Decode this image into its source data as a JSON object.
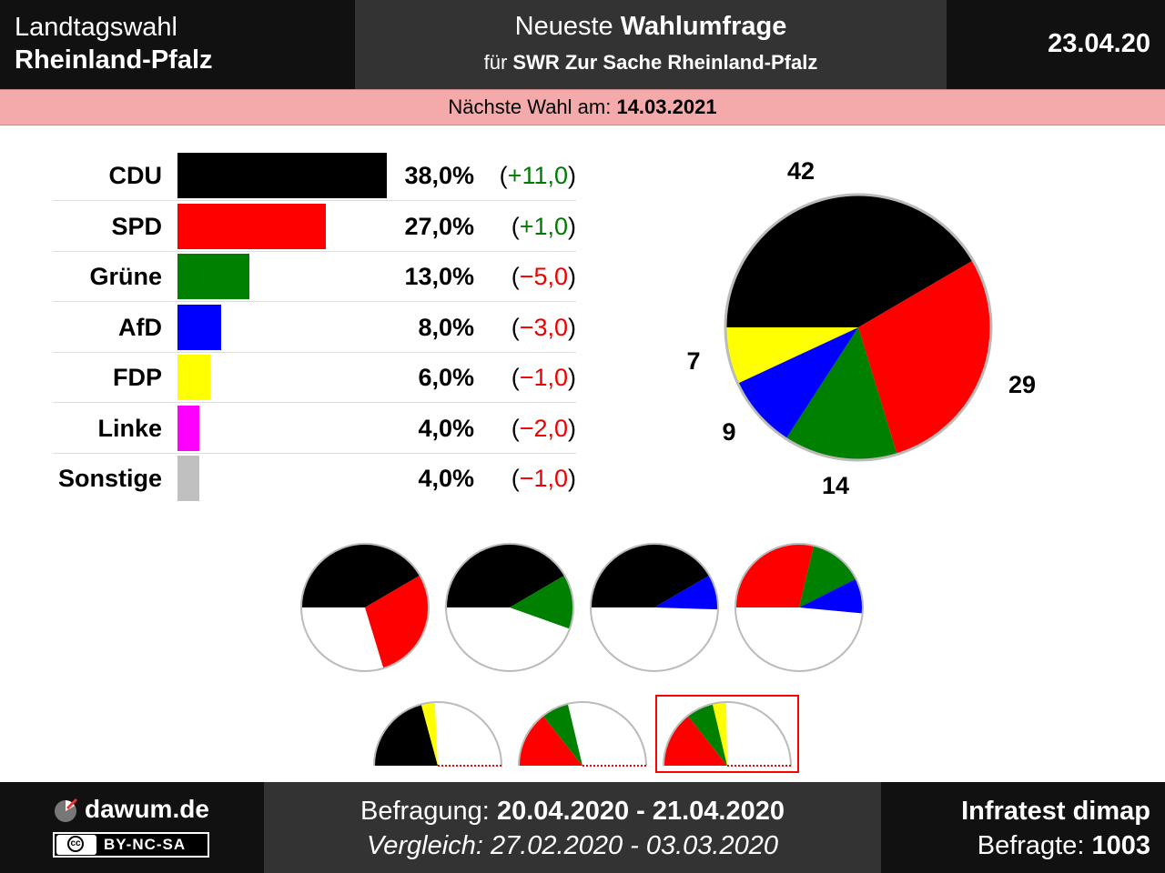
{
  "header": {
    "title_line1": "Landtagswahl",
    "title_line2": "Rheinland-Pfalz",
    "center_line1_prefix": "Neueste ",
    "center_line1_bold": "Wahlumfrage",
    "center_line2_prefix": "für ",
    "center_line2_bold": "SWR Zur Sache Rheinland-Pfalz",
    "date": "23.04.20"
  },
  "next_election": {
    "label": "Nächste Wahl am: ",
    "date": "14.03.2021"
  },
  "chart_data": {
    "type": "bar",
    "categories": [
      "CDU",
      "SPD",
      "Grüne",
      "AfD",
      "FDP",
      "Linke",
      "Sonstige"
    ],
    "values": [
      38.0,
      27.0,
      13.0,
      8.0,
      6.0,
      4.0,
      4.0
    ],
    "value_labels": [
      "38,0%",
      "27,0%",
      "13,0%",
      "8,0%",
      "6,0%",
      "4,0%",
      "4,0%"
    ],
    "changes": [
      11.0,
      1.0,
      -5.0,
      -3.0,
      -1.0,
      -2.0,
      -1.0
    ],
    "change_labels": [
      "(+11,0)",
      "(+1,0)",
      "(−5,0)",
      "(−3,0)",
      "(−1,0)",
      "(−2,0)",
      "(−1,0)"
    ],
    "colors": [
      "#000000",
      "#ff0000",
      "#008000",
      "#0000ff",
      "#ffff00",
      "#ff00ff",
      "#c0c0c0"
    ],
    "seats": {
      "type": "pie",
      "parties": [
        "CDU",
        "SPD",
        "Grüne",
        "AfD",
        "FDP"
      ],
      "values": [
        42,
        29,
        14,
        9,
        7
      ],
      "labels": [
        "42",
        "29",
        "14",
        "9",
        "7"
      ],
      "colors": [
        "#000000",
        "#ff0000",
        "#008000",
        "#0000ff",
        "#ffff00"
      ]
    },
    "coalitions": [
      {
        "parties": [
          "CDU",
          "SPD"
        ],
        "values": [
          42,
          29
        ],
        "colors": [
          "#000000",
          "#ff0000"
        ]
      },
      {
        "parties": [
          "CDU",
          "Grüne"
        ],
        "values": [
          42,
          14
        ],
        "colors": [
          "#000000",
          "#008000"
        ]
      },
      {
        "parties": [
          "CDU",
          "AfD"
        ],
        "values": [
          42,
          9
        ],
        "colors": [
          "#000000",
          "#0000ff"
        ]
      },
      {
        "parties": [
          "SPD",
          "Grüne",
          "AfD"
        ],
        "values": [
          29,
          14,
          9
        ],
        "colors": [
          "#ff0000",
          "#008000",
          "#0000ff"
        ]
      },
      {
        "parties": [
          "CDU",
          "FDP"
        ],
        "values": [
          42,
          7
        ],
        "colors": [
          "#000000",
          "#ffff00"
        ]
      },
      {
        "parties": [
          "SPD",
          "Grüne"
        ],
        "values": [
          29,
          14
        ],
        "colors": [
          "#ff0000",
          "#008000"
        ]
      },
      {
        "parties": [
          "SPD",
          "Grüne",
          "FDP"
        ],
        "values": [
          29,
          14,
          7
        ],
        "colors": [
          "#ff0000",
          "#008000",
          "#ffff00"
        ],
        "highlighted": true
      }
    ],
    "total_seats": 101
  },
  "footer": {
    "site": "dawum.de",
    "license": "BY-NC-SA",
    "cc_icon": "cc-icon",
    "survey_label": "Befragung: ",
    "survey_period": "20.04.2020 - 21.04.2020",
    "compare_text": "Vergleich: 27.02.2020 - 03.03.2020",
    "institute": "Infratest dimap",
    "respondents_label": "Befragte: ",
    "respondents": "1003"
  }
}
